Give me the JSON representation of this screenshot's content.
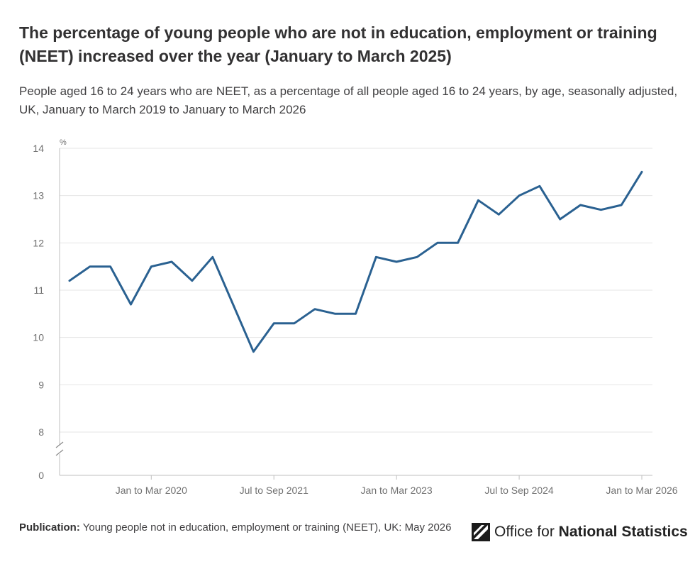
{
  "title": "The percentage of young people who are not in education, employment or training (NEET) increased over the year (January to March 2025)",
  "subtitle": "People aged 16 to 24 years who are NEET, as a percentage of all people aged 16 to 24 years, by age, seasonally adjusted, UK, January to March 2019 to January to March 2026",
  "footer": {
    "label": "Publication:",
    "text": "Young people not in education, employment or training (NEET), UK: May 2026"
  },
  "logo": {
    "icon": "ons-logo-icon",
    "prefix": "Office for",
    "name": "National Statistics"
  },
  "colors": {
    "line": "#2a6191",
    "grid": "#e5e5e5",
    "axis": "#bfbfbf",
    "tick_text": "#707070"
  },
  "chart_data": {
    "type": "line",
    "ylabel": "%",
    "y_ticks": [
      0,
      8,
      9,
      10,
      11,
      12,
      13,
      14
    ],
    "y_axis_break": "between 0 and 8",
    "ylim": [
      8,
      14
    ],
    "grid": true,
    "x_tick_labels": [
      "Jan to Mar 2020",
      "Jul to Sep 2021",
      "Jan to Mar 2023",
      "Jul to Sep 2024",
      "Jan to Mar 2026"
    ],
    "series": [
      {
        "periods": [
          "Jan to Mar 2019",
          "Apr to Jun 2019",
          "Jul to Sep 2019",
          "Oct to Dec 2019",
          "Jan to Mar 2020",
          "Apr to Jun 2020",
          "Jul to Sep 2020",
          "Oct to Dec 2020",
          "Jan to Mar 2021",
          "Apr to Jun 2021",
          "Jul to Sep 2021",
          "Oct to Dec 2021",
          "Jan to Mar 2022",
          "Apr to Jun 2022",
          "Jul to Sep 2022",
          "Oct to Dec 2022",
          "Jan to Mar 2023",
          "Apr to Jun 2023",
          "Jul to Sep 2023",
          "Oct to Dec 2023",
          "Jan to Mar 2024",
          "Apr to Jun 2024",
          "Jul to Sep 2024",
          "Oct to Dec 2024",
          "Jan to Mar 2025",
          "Apr to Jun 2025",
          "Jul to Sep 2025",
          "Oct to Dec 2025",
          "Jan to Mar 2026"
        ],
        "values": [
          11.2,
          11.5,
          11.5,
          10.7,
          11.5,
          11.6,
          11.2,
          11.7,
          10.7,
          9.7,
          10.3,
          10.3,
          10.6,
          10.5,
          10.5,
          11.7,
          11.6,
          11.7,
          12.0,
          12.0,
          12.9,
          12.6,
          13.0,
          13.2,
          12.5,
          12.8,
          12.7,
          12.8,
          13.5
        ]
      }
    ]
  }
}
